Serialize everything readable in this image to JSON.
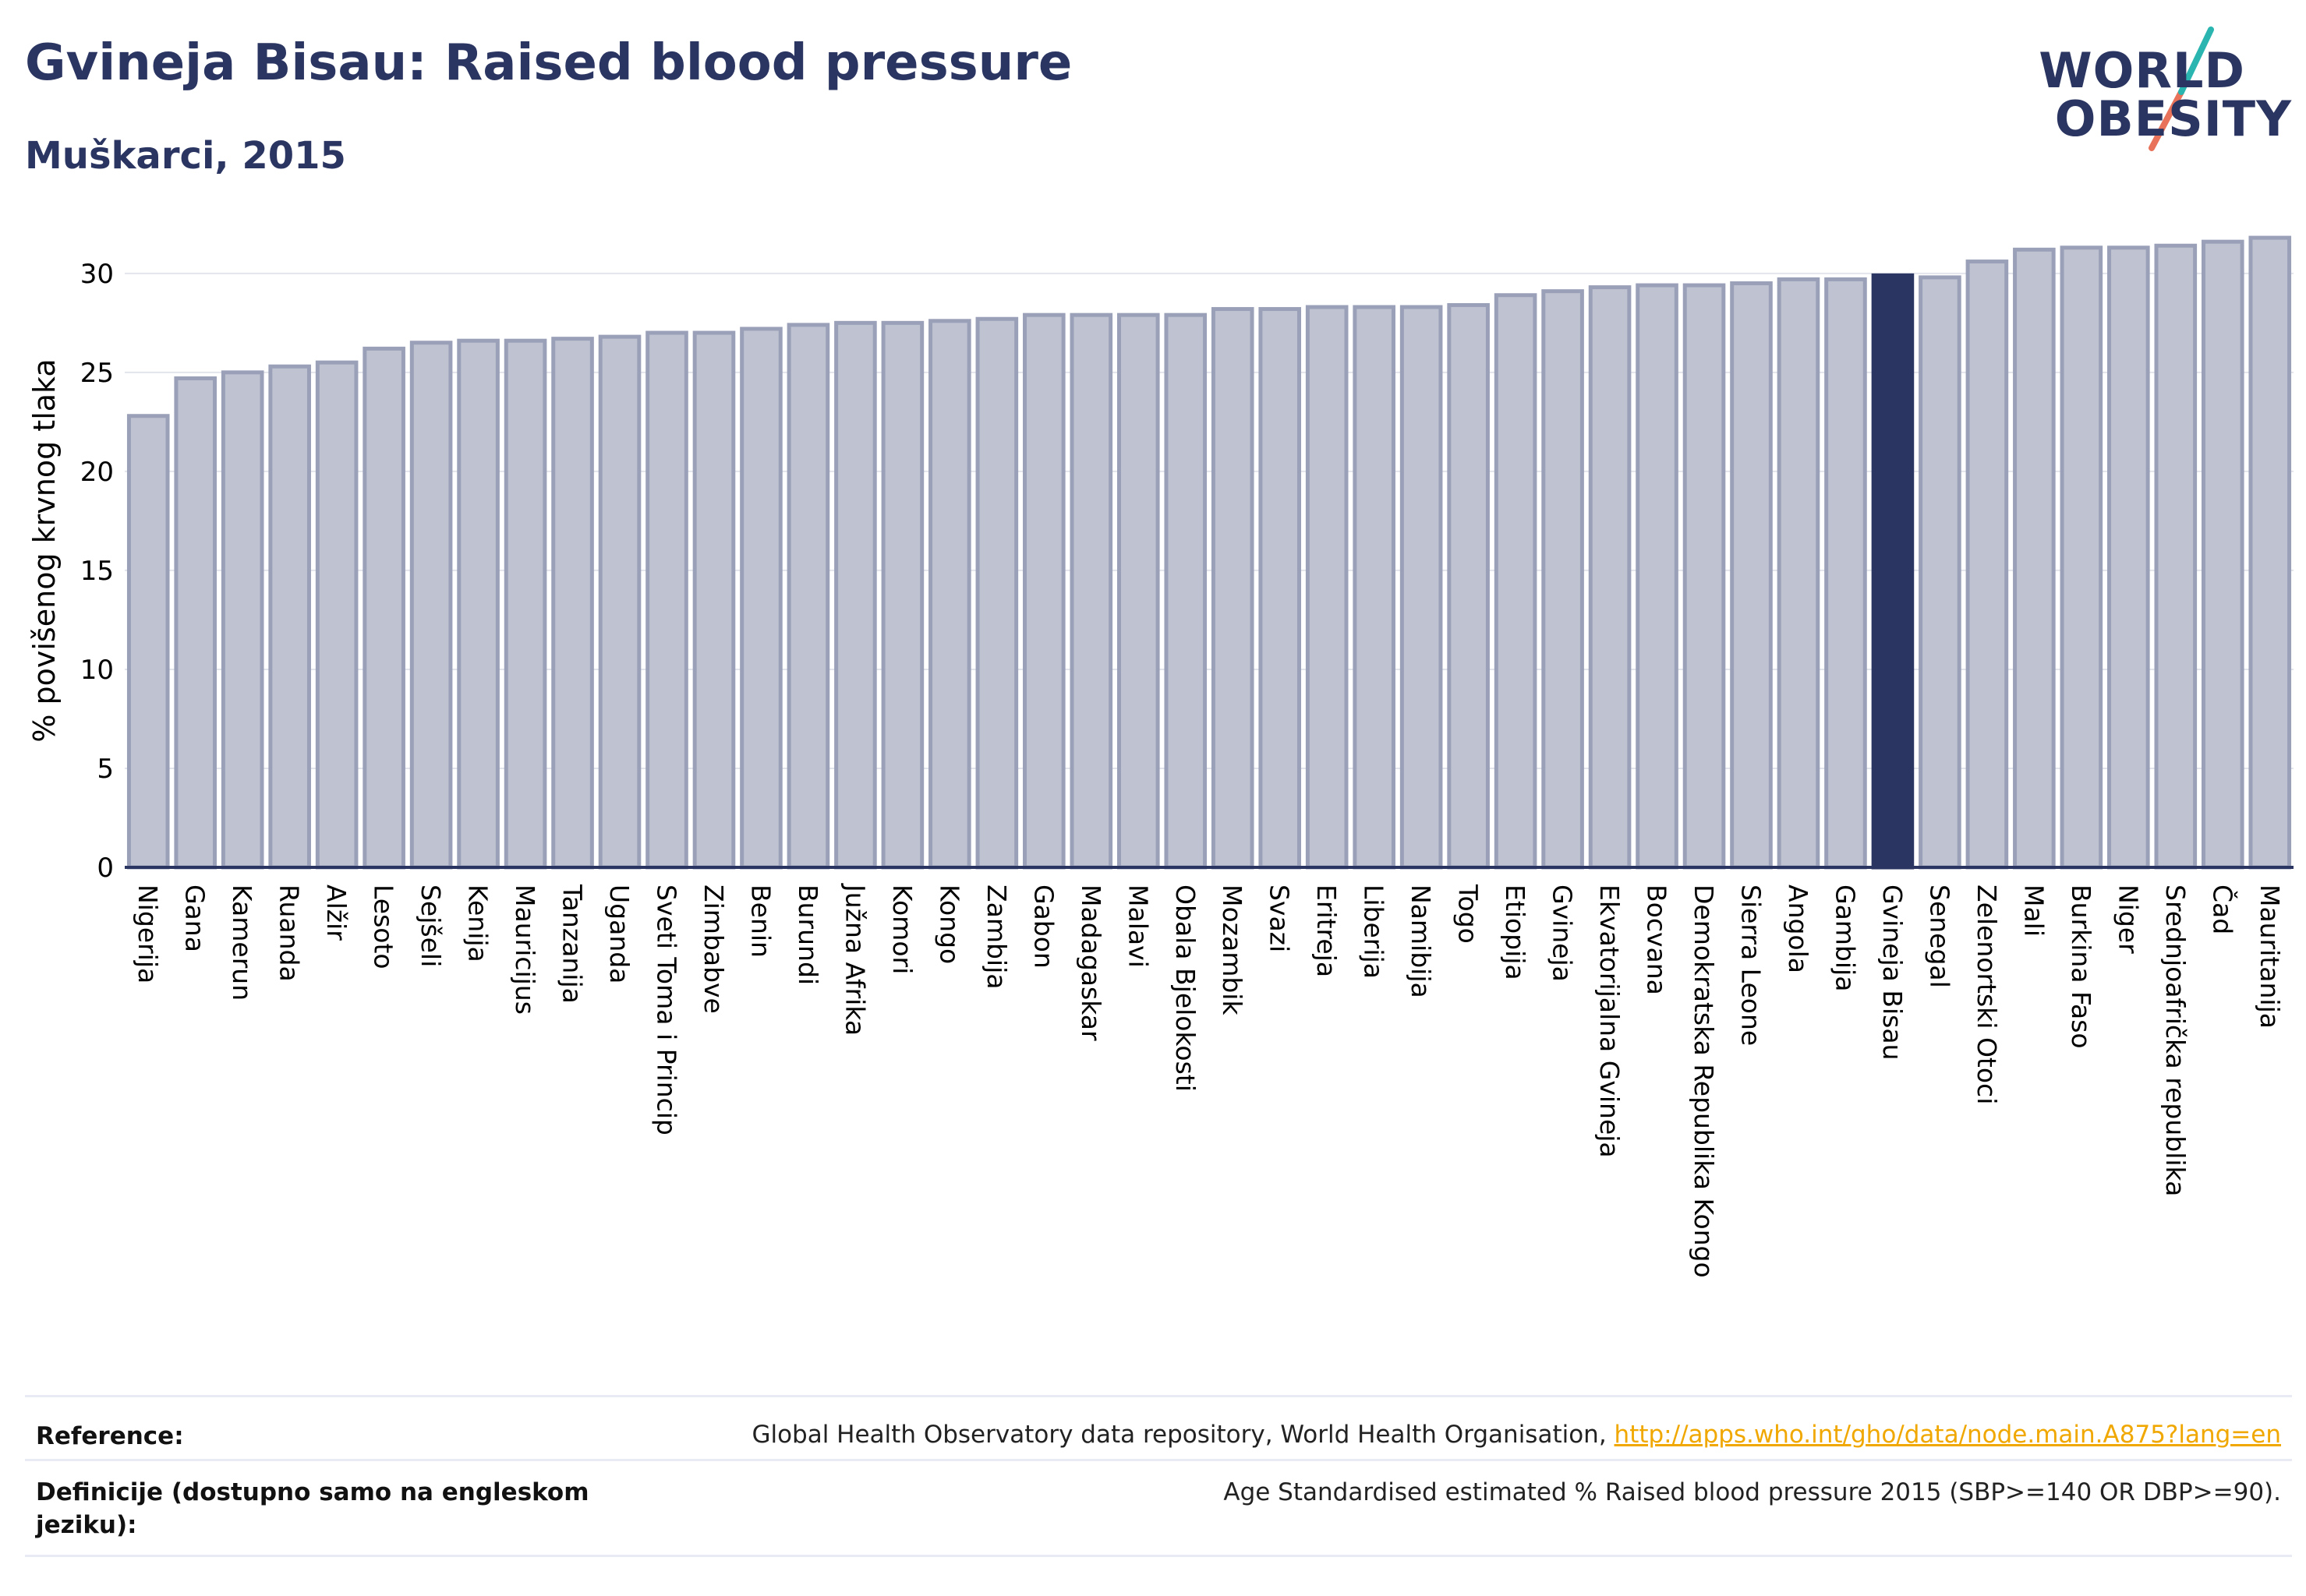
{
  "header": {
    "title": "Gvineja Bisau: Raised blood pressure",
    "subtitle": "Muškarci, 2015"
  },
  "logo": {
    "line1": "WORLD",
    "line2": "OBESITY",
    "colors": {
      "text": "#2b3561",
      "slash_top": "#2bb5b0",
      "slash_bottom": "#e8735a"
    }
  },
  "colors": {
    "bar_fill": "#bfc3d1",
    "bar_stroke": "#9aa0b8",
    "highlight_fill": "#2b3561",
    "grid": "#e3e5ec",
    "axis": "#2b3561"
  },
  "chart_data": {
    "type": "bar",
    "title": "Gvineja Bisau: Raised blood pressure",
    "subtitle": "Muškarci, 2015",
    "ylabel": "% povišenog krvnog tlaka",
    "xlabel": "",
    "ylim": [
      0,
      32
    ],
    "yticks": [
      0,
      5,
      10,
      15,
      20,
      25,
      30
    ],
    "grid": true,
    "highlight": "Gvineja Bisau",
    "categories": [
      "Nigerija",
      "Gana",
      "Kamerun",
      "Ruanda",
      "Alžir",
      "Lesoto",
      "Sejšeli",
      "Kenija",
      "Mauricijus",
      "Tanzanija",
      "Uganda",
      "Sveti Toma i Princip",
      "Zimbabve",
      "Benin",
      "Burundi",
      "Južna Afrika",
      "Komori",
      "Kongo",
      "Zambija",
      "Gabon",
      "Madagaskar",
      "Malavi",
      "Obala Bjelokosti",
      "Mozambik",
      "Svazi",
      "Eritreja",
      "Liberija",
      "Namibija",
      "Togo",
      "Etiopija",
      "Gvineja",
      "Ekvatorijalna Gvineja",
      "Bocvana",
      "Demokratska Republika Kongo",
      "Sierra Leone",
      "Angola",
      "Gambija",
      "Gvineja Bisau",
      "Senegal",
      "Zelenortski Otoci",
      "Mali",
      "Burkina Faso",
      "Niger",
      "Srednjoafrička republika",
      "Čad",
      "Mauritanija"
    ],
    "values": [
      22.8,
      24.7,
      25.0,
      25.3,
      25.5,
      26.2,
      26.5,
      26.6,
      26.6,
      26.7,
      26.8,
      27.0,
      27.0,
      27.2,
      27.4,
      27.5,
      27.5,
      27.6,
      27.7,
      27.9,
      27.9,
      27.9,
      27.9,
      28.2,
      28.2,
      28.3,
      28.3,
      28.3,
      28.4,
      28.9,
      29.1,
      29.3,
      29.4,
      29.4,
      29.5,
      29.7,
      29.7,
      29.9,
      29.8,
      30.6,
      31.2,
      31.3,
      31.3,
      31.4,
      31.6,
      31.8
    ]
  },
  "footer": {
    "reference_label": "Reference:",
    "reference_text": "Global Health Observatory data repository, World Health Organisation, ",
    "reference_link": "http://apps.who.int/gho/data/node.main.A875?lang=en",
    "definition_label": "Definicije (dostupno samo na engleskom jeziku):",
    "definition_text": "Age Standardised estimated % Raised blood pressure 2015 (SBP>=140 OR DBP>=90)."
  }
}
